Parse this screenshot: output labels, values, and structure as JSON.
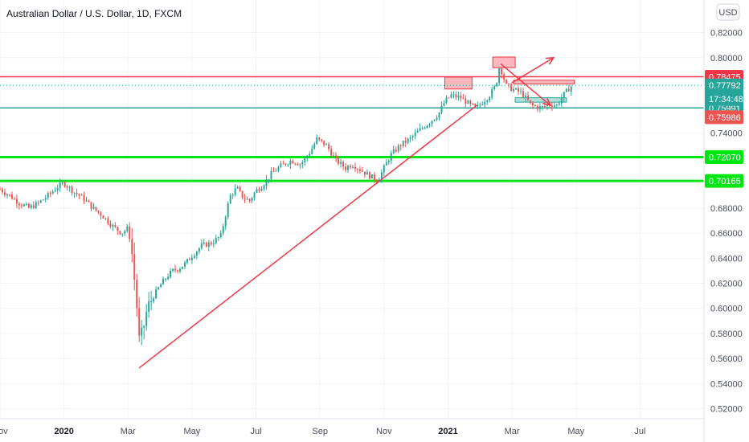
{
  "chart_data": {
    "type": "candlestick",
    "title": "Australian Dollar / U.S. Dollar, 1D, FXCM",
    "currency": "USD",
    "ylim": [
      0.512,
      0.846
    ],
    "y_ticks": [
      "0.52000",
      "0.54000",
      "0.56000",
      "0.58000",
      "0.60000",
      "0.62000",
      "0.64000",
      "0.66000",
      "0.68000",
      "0.70000",
      "0.72000",
      "0.74000",
      "0.76000",
      "0.78000",
      "0.80000",
      "0.82000"
    ],
    "x_ticks": [
      {
        "label": "Nov",
        "t": 0.0,
        "bold": false
      },
      {
        "label": "2020",
        "t": 2.0,
        "bold": true
      },
      {
        "label": "Mar",
        "t": 4.0,
        "bold": false
      },
      {
        "label": "May",
        "t": 6.0,
        "bold": false
      },
      {
        "label": "Jul",
        "t": 8.0,
        "bold": false
      },
      {
        "label": "Sep",
        "t": 10.0,
        "bold": false
      },
      {
        "label": "Nov",
        "t": 12.0,
        "bold": false
      },
      {
        "label": "2021",
        "t": 14.0,
        "bold": true
      },
      {
        "label": "Mar",
        "t": 16.0,
        "bold": false
      },
      {
        "label": "May",
        "t": 18.0,
        "bold": false
      },
      {
        "label": "Jul",
        "t": 20.0,
        "bold": false
      }
    ],
    "xlim": [
      0.0,
      22.0
    ],
    "path": [
      [
        0.0,
        0.695
      ],
      [
        0.3,
        0.69
      ],
      [
        0.6,
        0.684
      ],
      [
        0.9,
        0.68
      ],
      [
        1.2,
        0.684
      ],
      [
        1.5,
        0.69
      ],
      [
        1.8,
        0.697
      ],
      [
        2.0,
        0.7
      ],
      [
        2.3,
        0.693
      ],
      [
        2.6,
        0.688
      ],
      [
        2.9,
        0.68
      ],
      [
        3.2,
        0.674
      ],
      [
        3.5,
        0.666
      ],
      [
        3.8,
        0.66
      ],
      [
        4.0,
        0.664
      ],
      [
        4.1,
        0.65
      ],
      [
        4.25,
        0.61
      ],
      [
        4.35,
        0.575
      ],
      [
        4.45,
        0.58
      ],
      [
        4.6,
        0.6
      ],
      [
        4.8,
        0.61
      ],
      [
        5.0,
        0.618
      ],
      [
        5.2,
        0.625
      ],
      [
        5.4,
        0.63
      ],
      [
        5.6,
        0.632
      ],
      [
        5.8,
        0.636
      ],
      [
        6.0,
        0.642
      ],
      [
        6.3,
        0.65
      ],
      [
        6.6,
        0.652
      ],
      [
        6.9,
        0.658
      ],
      [
        7.1,
        0.68
      ],
      [
        7.2,
        0.69
      ],
      [
        7.4,
        0.696
      ],
      [
        7.6,
        0.688
      ],
      [
        7.8,
        0.686
      ],
      [
        8.0,
        0.694
      ],
      [
        8.2,
        0.698
      ],
      [
        8.5,
        0.708
      ],
      [
        8.8,
        0.714
      ],
      [
        9.1,
        0.718
      ],
      [
        9.4,
        0.715
      ],
      [
        9.7,
        0.725
      ],
      [
        9.9,
        0.735
      ],
      [
        10.2,
        0.73
      ],
      [
        10.5,
        0.718
      ],
      [
        10.8,
        0.712
      ],
      [
        11.0,
        0.715
      ],
      [
        11.3,
        0.71
      ],
      [
        11.6,
        0.705
      ],
      [
        11.8,
        0.702
      ],
      [
        12.0,
        0.712
      ],
      [
        12.2,
        0.722
      ],
      [
        12.5,
        0.73
      ],
      [
        12.8,
        0.735
      ],
      [
        13.1,
        0.742
      ],
      [
        13.4,
        0.748
      ],
      [
        13.7,
        0.755
      ],
      [
        13.9,
        0.765
      ],
      [
        14.1,
        0.77
      ],
      [
        14.4,
        0.768
      ],
      [
        14.7,
        0.762
      ],
      [
        14.9,
        0.76
      ],
      [
        15.1,
        0.765
      ],
      [
        15.3,
        0.77
      ],
      [
        15.5,
        0.778
      ],
      [
        15.6,
        0.792
      ],
      [
        15.7,
        0.788
      ],
      [
        15.8,
        0.778
      ],
      [
        16.0,
        0.775
      ],
      [
        16.3,
        0.772
      ],
      [
        16.6,
        0.762
      ],
      [
        16.9,
        0.76
      ],
      [
        17.2,
        0.763
      ],
      [
        17.4,
        0.762
      ],
      [
        17.6,
        0.77
      ],
      [
        17.8,
        0.776
      ],
      [
        17.9,
        0.7779
      ]
    ],
    "horizontal_levels": [
      {
        "value": 0.78475,
        "label": "0.78475",
        "color": "#f23645",
        "width": 1.5
      },
      {
        "value": 0.75991,
        "label": "0.75991",
        "color": "#26a69a",
        "width": 1.5
      },
      {
        "value": 0.7207,
        "label": "0.72070",
        "color": "#00e613",
        "width": 3
      },
      {
        "value": 0.70165,
        "label": "0.70165",
        "color": "#00e613",
        "width": 3
      }
    ],
    "other_tags": [
      {
        "value": 0.7779,
        "label": "0.77792",
        "sub": "17:34:48",
        "color": "#26a69a"
      },
      {
        "value": 0.75986,
        "label": "0.75986",
        "color": "#ef5350"
      }
    ],
    "trendline": {
      "from": [
        4.35,
        0.5525
      ],
      "to": [
        14.9,
        0.762
      ],
      "color": "#f23645"
    },
    "arrows": [
      {
        "from": [
          16.0,
          0.78
        ],
        "to": [
          17.3,
          0.8
        ],
        "color": "#f23645"
      },
      {
        "from": [
          15.65,
          0.795
        ],
        "to": [
          17.2,
          0.762
        ],
        "color": "#f23645"
      }
    ],
    "zones": [
      {
        "t0": 13.9,
        "t1": 14.75,
        "y0": 0.775,
        "y1": 0.7845,
        "color": "#f23645"
      },
      {
        "t0": 15.4,
        "t1": 16.1,
        "y0": 0.792,
        "y1": 0.8005,
        "color": "#f23645"
      },
      {
        "t0": 16.05,
        "t1": 17.95,
        "y0": 0.779,
        "y1": 0.782,
        "color": "#f23645"
      },
      {
        "t0": 16.1,
        "t1": 17.7,
        "y0": 0.7645,
        "y1": 0.768,
        "color": "#26a69a"
      }
    ],
    "colors": {
      "up": "#26a69a",
      "down": "#ef5350"
    }
  }
}
